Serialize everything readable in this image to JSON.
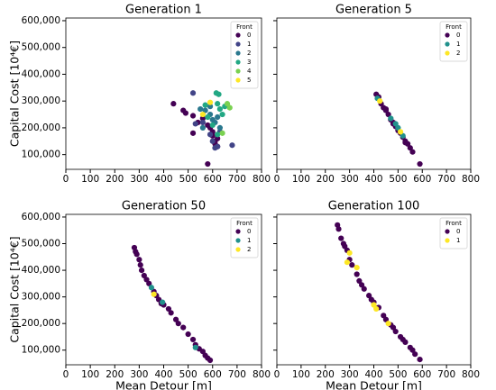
{
  "chart_data": [
    {
      "type": "scatter",
      "title": "Generation 1",
      "ylabel": "Capital Cost [10⁴€]",
      "legend_title": "Front",
      "legend": "upper right",
      "xlim": [
        0,
        800
      ],
      "xticks": [
        0,
        100,
        200,
        300,
        400,
        500,
        600,
        700,
        800
      ],
      "ylim": [
        45000,
        610000
      ],
      "yticks": [
        {
          "value": 100000,
          "label": "100,000"
        },
        {
          "value": 200000,
          "label": "200,000"
        },
        {
          "value": 300000,
          "label": "300,000"
        },
        {
          "value": 400000,
          "label": "400,000"
        },
        {
          "value": 500000,
          "label": "500,000"
        },
        {
          "value": 600000,
          "label": "600,000"
        }
      ],
      "series": [
        {
          "name": "0",
          "color": "#440154",
          "x": [
            440,
            480,
            490,
            520,
            520,
            540,
            560,
            580,
            590,
            600,
            610,
            620,
            580,
            600,
            620,
            610
          ],
          "values": [
            290000,
            265000,
            255000,
            245000,
            180000,
            220000,
            235000,
            210000,
            200000,
            170000,
            150000,
            130000,
            65000,
            185000,
            160000,
            140000
          ]
        },
        {
          "name": "1",
          "color": "#414487",
          "x": [
            520,
            530,
            560,
            590,
            600,
            610,
            620,
            680,
            630
          ],
          "values": [
            330000,
            215000,
            220000,
            175000,
            150000,
            125000,
            130000,
            135000,
            185000
          ]
        },
        {
          "name": "2",
          "color": "#2a788e",
          "x": [
            550,
            570,
            590,
            600,
            610,
            620,
            590,
            630,
            560
          ],
          "values": [
            270000,
            265000,
            250000,
            230000,
            220000,
            240000,
            280000,
            200000,
            200000
          ]
        },
        {
          "name": "3",
          "color": "#22a884",
          "x": [
            570,
            620,
            630,
            640,
            650,
            600,
            620,
            615,
            625,
            580
          ],
          "values": [
            285000,
            290000,
            270000,
            250000,
            280000,
            210000,
            175000,
            330000,
            325000,
            240000
          ]
        },
        {
          "name": "4",
          "color": "#7ad151",
          "x": [
            670,
            660,
            640
          ],
          "values": [
            275000,
            290000,
            180000
          ]
        },
        {
          "name": "5",
          "color": "#fde725",
          "x": [
            590,
            560
          ],
          "values": [
            295000,
            250000
          ]
        }
      ]
    },
    {
      "type": "scatter",
      "title": "Generation 5",
      "legend_title": "Front",
      "legend": "upper right",
      "sharey": true,
      "xlim": [
        0,
        800
      ],
      "xticks": [
        0,
        100,
        200,
        300,
        400,
        500,
        600,
        700,
        800
      ],
      "ylim": [
        45000,
        610000
      ],
      "yticks": [
        100000,
        200000,
        300000,
        400000,
        500000,
        600000
      ],
      "series": [
        {
          "name": "0",
          "color": "#440154",
          "x": [
            410,
            420,
            430,
            440,
            450,
            460,
            470,
            480,
            490,
            500,
            510,
            520,
            530,
            540,
            550,
            560,
            590,
            450,
            480,
            530
          ],
          "values": [
            325000,
            315000,
            290000,
            275000,
            265000,
            250000,
            230000,
            220000,
            205000,
            190000,
            180000,
            165000,
            150000,
            140000,
            125000,
            110000,
            65000,
            270000,
            215000,
            145000
          ]
        },
        {
          "name": "1",
          "color": "#21918c",
          "x": [
            415,
            470,
            490,
            500,
            520
          ],
          "values": [
            310000,
            235000,
            215000,
            200000,
            170000
          ]
        },
        {
          "name": "2",
          "color": "#fde725",
          "x": [
            425,
            510
          ],
          "values": [
            300000,
            185000
          ]
        }
      ]
    },
    {
      "type": "scatter",
      "title": "Generation 50",
      "ylabel": "Capital Cost [10⁴€]",
      "xlabel": "Mean Detour [m]",
      "legend_title": "Front",
      "legend": "upper right",
      "xlim": [
        0,
        800
      ],
      "xticks": [
        0,
        100,
        200,
        300,
        400,
        500,
        600,
        700,
        800
      ],
      "ylim": [
        45000,
        610000
      ],
      "yticks": [
        {
          "value": 100000,
          "label": "100,000"
        },
        {
          "value": 200000,
          "label": "200,000"
        },
        {
          "value": 300000,
          "label": "300,000"
        },
        {
          "value": 400000,
          "label": "400,000"
        },
        {
          "value": 500000,
          "label": "500,000"
        },
        {
          "value": 600000,
          "label": "600,000"
        }
      ],
      "series": [
        {
          "name": "0",
          "color": "#440154",
          "x": [
            280,
            285,
            290,
            300,
            305,
            310,
            320,
            330,
            340,
            360,
            370,
            380,
            390,
            400,
            420,
            430,
            450,
            460,
            480,
            500,
            520,
            530,
            545,
            560,
            570,
            580,
            590
          ],
          "values": [
            485000,
            470000,
            460000,
            440000,
            420000,
            400000,
            380000,
            365000,
            350000,
            320000,
            305000,
            290000,
            275000,
            270000,
            255000,
            240000,
            215000,
            200000,
            185000,
            160000,
            140000,
            120000,
            105000,
            95000,
            80000,
            70000,
            62000
          ]
        },
        {
          "name": "1",
          "color": "#21918c",
          "x": [
            350,
            395,
            530
          ],
          "values": [
            335000,
            280000,
            110000
          ]
        },
        {
          "name": "2",
          "color": "#fde725",
          "x": [
            360
          ],
          "values": [
            310000
          ]
        }
      ]
    },
    {
      "type": "scatter",
      "title": "Generation 100",
      "xlabel": "Mean Detour [m]",
      "legend_title": "Front",
      "legend": "upper right",
      "sharey": true,
      "xlim": [
        0,
        800
      ],
      "xticks": [
        0,
        100,
        200,
        300,
        400,
        500,
        600,
        700,
        800
      ],
      "ylim": [
        45000,
        610000
      ],
      "yticks": [
        100000,
        200000,
        300000,
        400000,
        500000,
        600000
      ],
      "series": [
        {
          "name": "0",
          "color": "#440154",
          "x": [
            250,
            255,
            265,
            275,
            280,
            290,
            300,
            310,
            330,
            340,
            350,
            360,
            380,
            390,
            400,
            420,
            440,
            450,
            470,
            480,
            490,
            510,
            520,
            530,
            550,
            560,
            570,
            590
          ],
          "values": [
            570000,
            555000,
            520000,
            500000,
            490000,
            475000,
            440000,
            420000,
            385000,
            360000,
            345000,
            330000,
            305000,
            290000,
            280000,
            260000,
            230000,
            215000,
            195000,
            185000,
            170000,
            150000,
            140000,
            130000,
            110000,
            100000,
            85000,
            65000
          ]
        },
        {
          "name": "1",
          "color": "#fde725",
          "x": [
            290,
            300,
            330,
            400,
            410,
            460
          ],
          "values": [
            430000,
            465000,
            410000,
            270000,
            255000,
            200000
          ]
        }
      ]
    }
  ]
}
